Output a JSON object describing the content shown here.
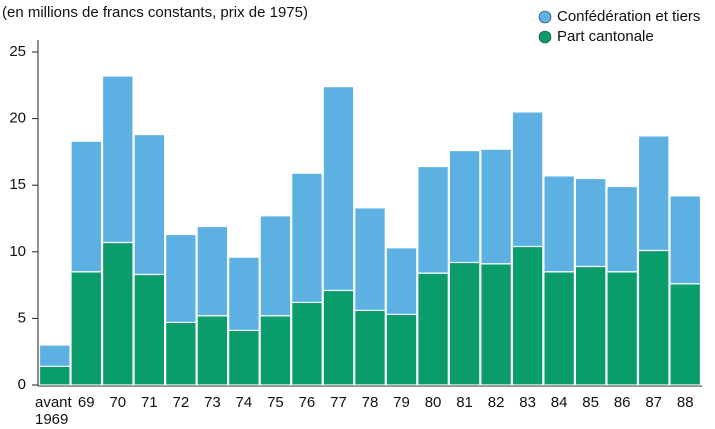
{
  "chart_data": {
    "type": "stacked_bar",
    "subtitle": "(en millions de francs constants, prix de 1975)",
    "categories": [
      "avant\n1969",
      "69",
      "70",
      "71",
      "72",
      "73",
      "74",
      "75",
      "76",
      "77",
      "78",
      "79",
      "80",
      "81",
      "82",
      "83",
      "84",
      "85",
      "86",
      "87",
      "88"
    ],
    "series": [
      {
        "name": "Part cantonale",
        "color": "#0a9d6b",
        "values": [
          1.4,
          8.5,
          10.7,
          8.3,
          4.7,
          5.2,
          4.1,
          5.2,
          6.2,
          7.1,
          5.6,
          5.3,
          8.4,
          9.2,
          9.1,
          10.4,
          8.5,
          8.9,
          8.5,
          10.1,
          7.6
        ]
      },
      {
        "name": "Confédération et tiers",
        "color": "#5cb0e2",
        "values": [
          1.6,
          9.8,
          12.5,
          10.5,
          6.6,
          6.7,
          5.5,
          7.5,
          9.7,
          15.3,
          7.7,
          5.0,
          8.0,
          8.4,
          8.6,
          10.1,
          7.2,
          6.6,
          6.4,
          8.6,
          6.6
        ]
      }
    ],
    "ylim": [
      0,
      25
    ],
    "yticks": [
      0,
      5,
      10,
      15,
      20,
      25
    ],
    "legend": "top-right"
  }
}
